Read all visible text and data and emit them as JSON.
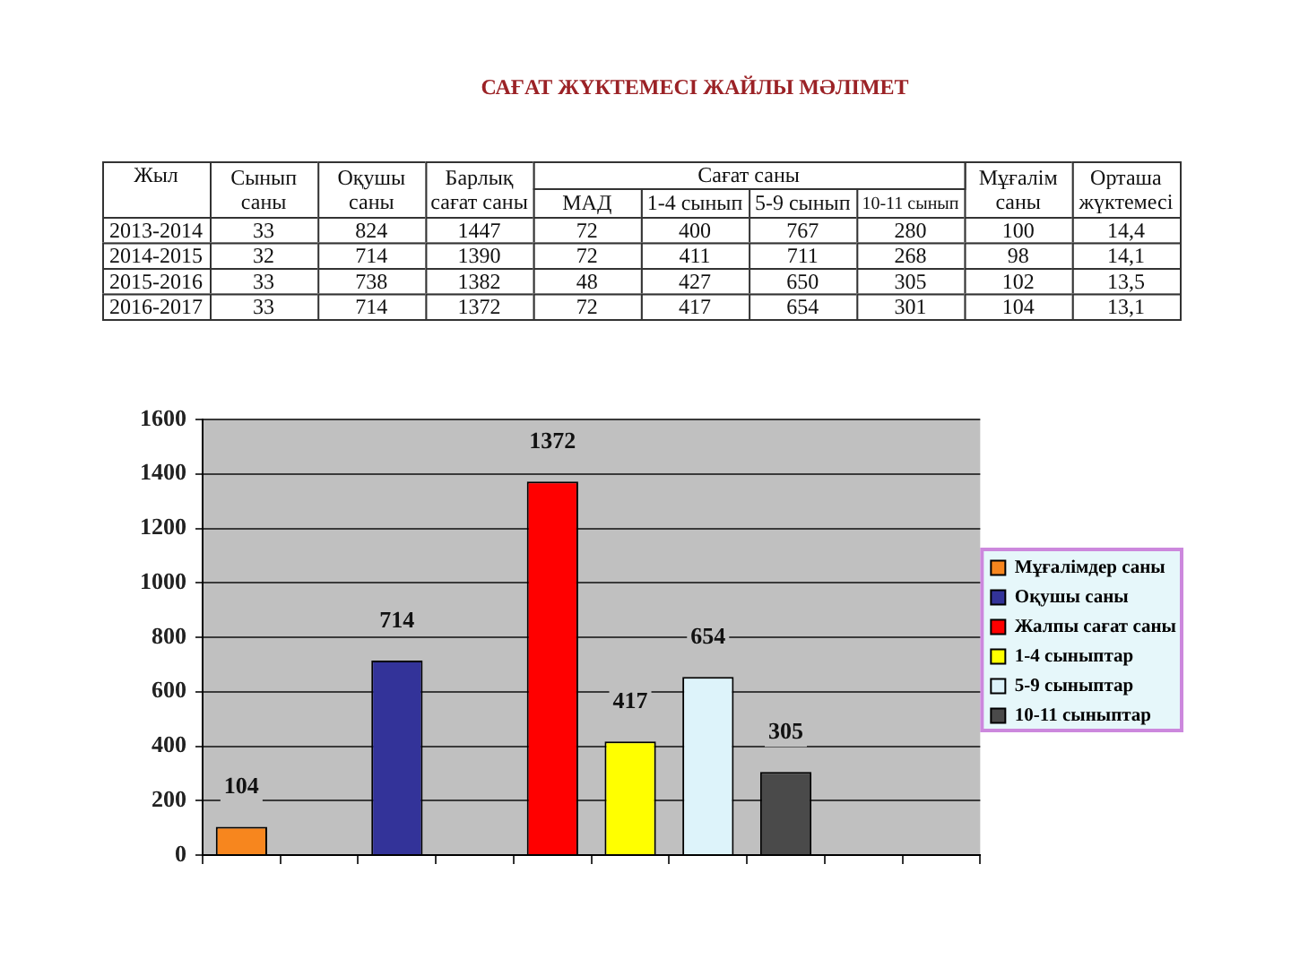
{
  "chart_data": [
    {
      "type": "heatmap",
      "title": "САҒАТ ЖҮКТЕМЕСІ ЖАЙЛЫ МӘЛІМЕТ",
      "ylabel": "Жыл",
      "annotations": [
        "Сағат саны"
      ],
      "categories": [
        "Сынып саны",
        "Оқушы саны",
        "Барлық сағат саны",
        "МАД",
        "1-4 сынып",
        "5-9 сынып",
        "10-11 сынып",
        "Мұғалім саны",
        "Орташа жүктемесі"
      ],
      "y_categories": [
        "2013-2014",
        "2014-2015",
        "2015-2016",
        "2016-2017"
      ],
      "cells": [
        [
          33,
          824,
          1447,
          72,
          400,
          767,
          280,
          100,
          14.4
        ],
        [
          32,
          714,
          1390,
          72,
          411,
          711,
          268,
          98,
          14.1
        ],
        [
          33,
          738,
          1382,
          48,
          427,
          650,
          305,
          102,
          13.5
        ],
        [
          33,
          714,
          1372,
          72,
          417,
          654,
          301,
          104,
          13.1
        ]
      ],
      "cell_labels": [
        [
          "33",
          "824",
          "1447",
          "72",
          "400",
          "767",
          "280",
          "100",
          "14,4"
        ],
        [
          "32",
          "714",
          "1390",
          "72",
          "411",
          "711",
          "268",
          "98",
          "14,1"
        ],
        [
          "33",
          "738",
          "1382",
          "48",
          "427",
          "650",
          "305",
          "102",
          "13,5"
        ],
        [
          "33",
          "714",
          "1372",
          "72",
          "417",
          "654",
          "301",
          "104",
          "13,1"
        ]
      ]
    },
    {
      "type": "bar",
      "categories": [
        null,
        null,
        null,
        null,
        null,
        null,
        null,
        null,
        null,
        null
      ],
      "series": [
        {
          "name": "Мұғалімдер саны",
          "color": "#f7861e",
          "values": [
            104,
            null,
            null,
            null,
            null,
            null,
            null,
            null,
            null,
            null
          ]
        },
        {
          "name": "Оқушы саны",
          "color": "#333399",
          "values": [
            null,
            null,
            714,
            null,
            null,
            null,
            null,
            null,
            null,
            null
          ]
        },
        {
          "name": "Жалпы сағат саны",
          "color": "#ff0000",
          "values": [
            null,
            null,
            null,
            null,
            1372,
            null,
            null,
            null,
            null,
            null
          ]
        },
        {
          "name": "1-4 сыныптар",
          "color": "#ffff00",
          "values": [
            null,
            null,
            null,
            null,
            null,
            417,
            null,
            null,
            null,
            null
          ]
        },
        {
          "name": "5-9 сыныптар",
          "color": "#ddf3fa",
          "values": [
            null,
            null,
            null,
            null,
            null,
            null,
            654,
            null,
            null,
            null
          ]
        },
        {
          "name": "10-11 сыныптар",
          "color": "#4a4a4a",
          "values": [
            null,
            null,
            null,
            null,
            null,
            null,
            null,
            305,
            null,
            null
          ]
        }
      ],
      "ylim": [
        0,
        1600
      ],
      "yticks": [
        0,
        200,
        400,
        600,
        800,
        1000,
        1200,
        1400,
        1600
      ],
      "grid": "y",
      "legend": "right",
      "data_labels": true
    }
  ]
}
